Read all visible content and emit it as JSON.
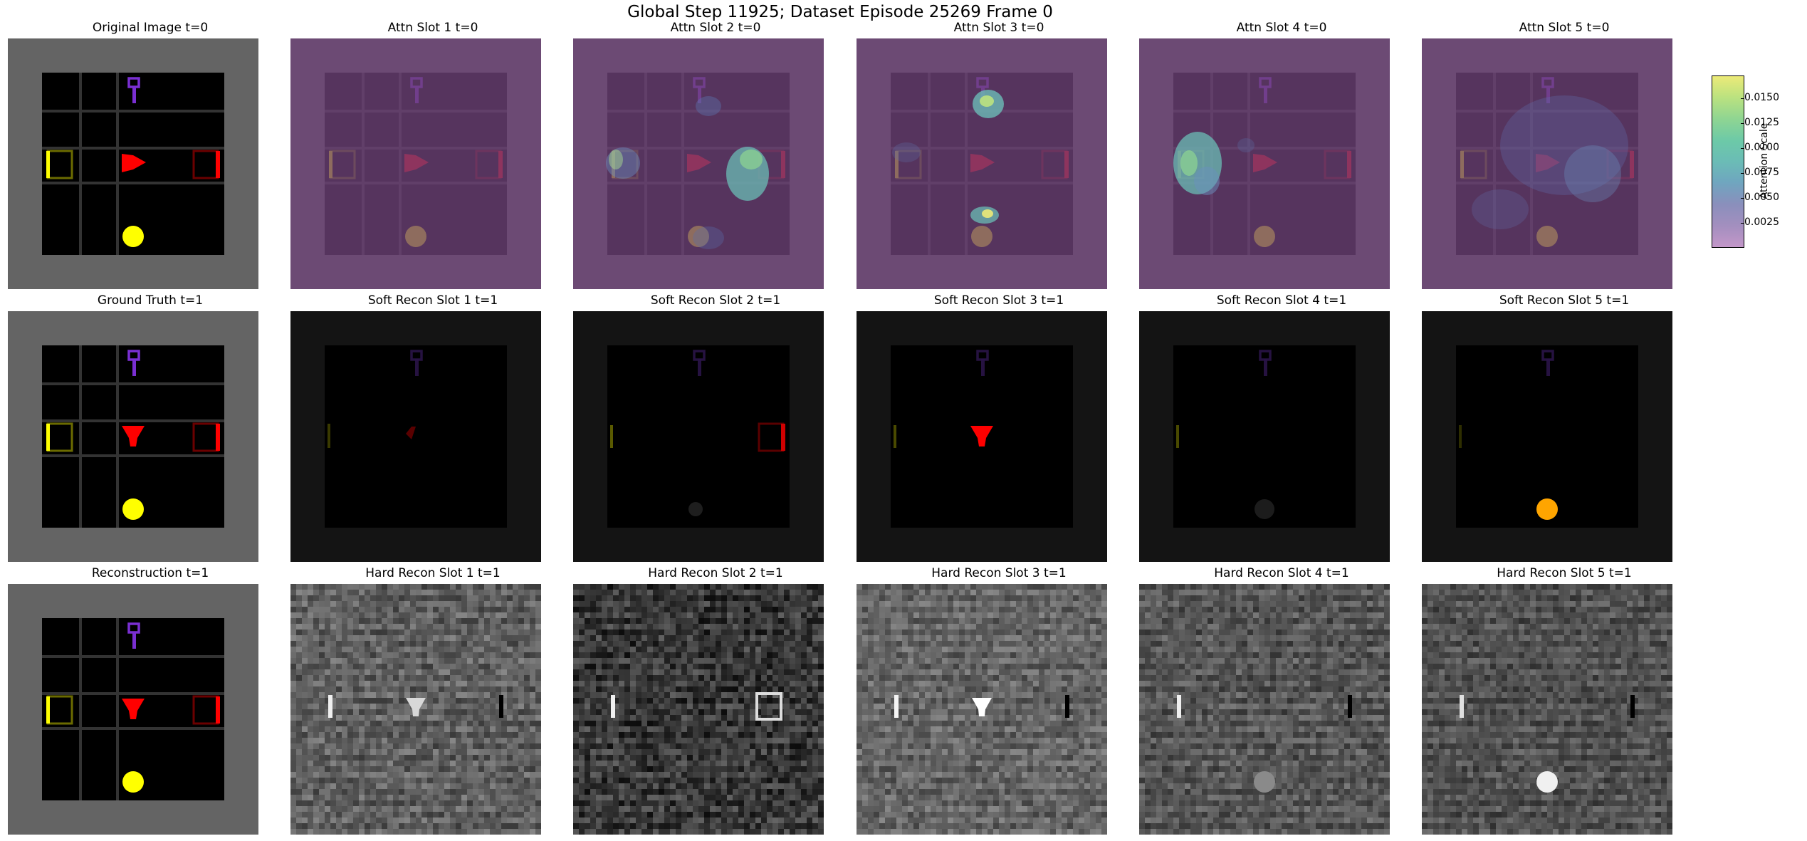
{
  "figure": {
    "suptitle": "Global Step 11925; Dataset Episode 25269 Frame 0"
  },
  "rows": [
    {
      "kind": "attention",
      "titles": [
        "Original Image t=0",
        "Attn Slot 1 t=0",
        "Attn Slot 2 t=0",
        "Attn Slot 3 t=0",
        "Attn Slot 4 t=0",
        "Attn Slot 5 t=0"
      ]
    },
    {
      "kind": "soft",
      "titles": [
        "Ground Truth t=1",
        "Soft Recon Slot 1 t=1",
        "Soft Recon Slot 2 t=1",
        "Soft Recon Slot 3 t=1",
        "Soft Recon Slot 4 t=1",
        "Soft Recon Slot 5 t=1"
      ]
    },
    {
      "kind": "hard",
      "titles": [
        "Reconstruction t=1",
        "Hard Recon Slot 1 t=1",
        "Hard Recon Slot 2 t=1",
        "Hard Recon Slot 3 t=1",
        "Hard Recon Slot 4 t=1",
        "Hard Recon Slot 5 t=1"
      ]
    }
  ],
  "colorbar": {
    "label": "Attention Scale",
    "ticks": [
      "0.0025",
      "0.0050",
      "0.0075",
      "0.0100",
      "0.0125",
      "0.0150"
    ],
    "range": [
      0.0,
      0.0172
    ],
    "colors": [
      "#c397c9",
      "#8a8fbc",
      "#6bbcb6",
      "#8fd592",
      "#ecea78"
    ]
  },
  "colors": {
    "wall": "#646464",
    "floor": "#000000",
    "grid": "#333333",
    "key": "#7a2fd2",
    "agent": "#ff0000",
    "ball": "#ffff00",
    "box_yellow": "#ffff00",
    "box_red": "#ff0000",
    "attn_overlay": "#6e4379",
    "soft_bg": "#141414",
    "soft_ball": "#ffa500"
  }
}
